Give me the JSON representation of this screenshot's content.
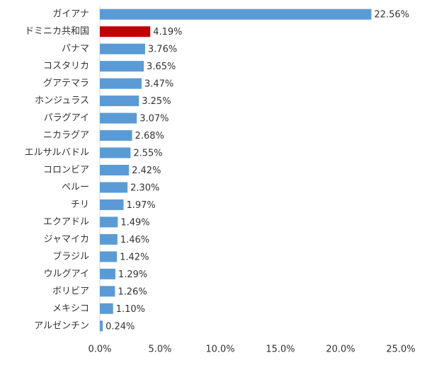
{
  "chart_data": {
    "type": "bar",
    "orientation": "horizontal",
    "categories": [
      "ガイアナ",
      "ドミニカ共和国",
      "パナマ",
      "コスタリカ",
      "グアテマラ",
      "ホンジュラス",
      "パラグアイ",
      "ニカラグア",
      "エルサルバドル",
      "コロンビア",
      "ペルー",
      "チリ",
      "エクアドル",
      "ジャマイカ",
      "ブラジル",
      "ウルグアイ",
      "ボリビア",
      "メキシコ",
      "アルゼンチン"
    ],
    "values": [
      22.56,
      4.19,
      3.76,
      3.65,
      3.47,
      3.25,
      3.07,
      2.68,
      2.55,
      2.42,
      2.3,
      1.97,
      1.49,
      1.46,
      1.42,
      1.29,
      1.26,
      1.1,
      0.24
    ],
    "value_labels": [
      "22.56%",
      "4.19%",
      "3.76%",
      "3.65%",
      "3.47%",
      "3.25%",
      "3.07%",
      "2.68%",
      "2.55%",
      "2.42%",
      "2.30%",
      "1.97%",
      "1.49%",
      "1.46%",
      "1.42%",
      "1.29%",
      "1.26%",
      "1.10%",
      "0.24%"
    ],
    "colors": [
      "#5b9bd5",
      "#c00000",
      "#5b9bd5",
      "#5b9bd5",
      "#5b9bd5",
      "#5b9bd5",
      "#5b9bd5",
      "#5b9bd5",
      "#5b9bd5",
      "#5b9bd5",
      "#5b9bd5",
      "#5b9bd5",
      "#5b9bd5",
      "#5b9bd5",
      "#5b9bd5",
      "#5b9bd5",
      "#5b9bd5",
      "#5b9bd5",
      "#5b9bd5"
    ],
    "xlim": [
      0,
      25
    ],
    "xticks": [
      {
        "value": 0,
        "label": "0.0%"
      },
      {
        "value": 5,
        "label": "5.0%"
      },
      {
        "value": 10,
        "label": "10.0%"
      },
      {
        "value": 15,
        "label": "15.0%"
      },
      {
        "value": 20,
        "label": "20.0%"
      },
      {
        "value": 25,
        "label": "25.0%"
      }
    ],
    "grid": false
  }
}
